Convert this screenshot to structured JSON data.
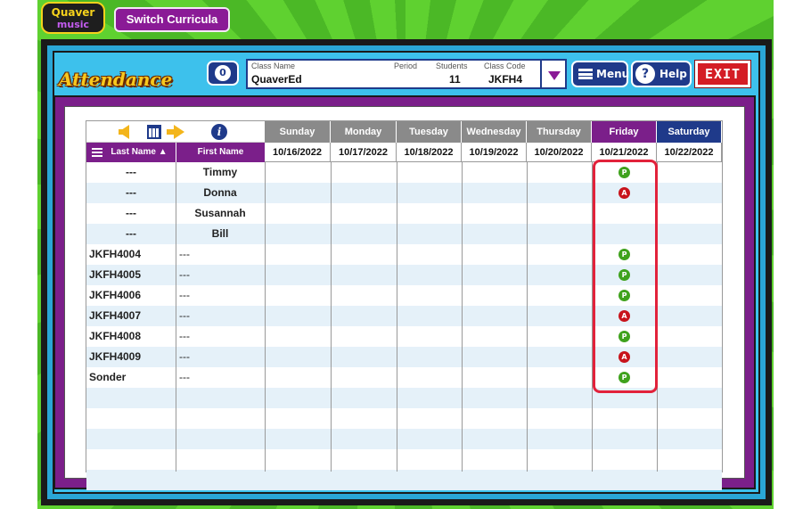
{
  "logo": {
    "line1": "Quaver",
    "line2": "music"
  },
  "switch_curricula": "Switch Curricula",
  "header": {
    "title": "Attendance",
    "badge_count": "0",
    "class_name_label": "Class Name",
    "class_name": "QuaverEd",
    "period_label": "Period",
    "period": "",
    "students_label": "Students",
    "students": "11",
    "class_code_label": "Class Code",
    "class_code": "JKFH4",
    "menu_label": "Menu",
    "help_label": "Help",
    "exit_label": "EXIT"
  },
  "table": {
    "last_name_header": "Last Name ▲",
    "first_name_header": "First Name",
    "days": [
      {
        "day": "Sunday",
        "date": "10/16/2022"
      },
      {
        "day": "Monday",
        "date": "10/17/2022"
      },
      {
        "day": "Tuesday",
        "date": "10/18/2022"
      },
      {
        "day": "Wednesday",
        "date": "10/19/2022"
      },
      {
        "day": "Thursday",
        "date": "10/20/2022"
      },
      {
        "day": "Friday",
        "date": "10/21/2022"
      },
      {
        "day": "Saturday",
        "date": "10/22/2022"
      }
    ],
    "rows": [
      {
        "last": "---",
        "first": "Timmy",
        "friday": "P"
      },
      {
        "last": "---",
        "first": "Donna",
        "friday": "A"
      },
      {
        "last": "---",
        "first": "Susannah",
        "friday": ""
      },
      {
        "last": "---",
        "first": "Bill",
        "friday": ""
      },
      {
        "last": "JKFH4004",
        "first": "---",
        "friday": "P"
      },
      {
        "last": "JKFH4005",
        "first": "---",
        "friday": "P"
      },
      {
        "last": "JKFH4006",
        "first": "---",
        "friday": "P"
      },
      {
        "last": "JKFH4007",
        "first": "---",
        "friday": "A"
      },
      {
        "last": "JKFH4008",
        "first": "---",
        "friday": "P"
      },
      {
        "last": "JKFH4009",
        "first": "---",
        "friday": "A"
      },
      {
        "last": "Sonder",
        "first": "---",
        "friday": "P"
      }
    ],
    "empty_rows": 5
  },
  "colors": {
    "day_header": "#8a8a8a",
    "friday_header": "#7b1f8a",
    "saturday_header": "#1f3a8a",
    "present": "#3fa21d",
    "absent": "#c8141c",
    "highlight": "#e2223b"
  }
}
